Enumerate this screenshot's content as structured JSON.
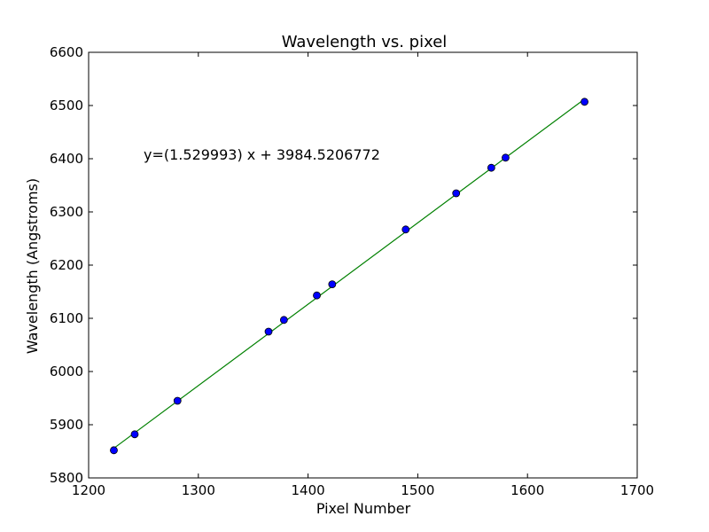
{
  "chart_data": {
    "type": "scatter",
    "title": "Wavelength vs. pixel",
    "xlabel": "Pixel Number",
    "ylabel": "Wavelength (Angstroms)",
    "xlim": [
      1200,
      1700
    ],
    "ylim": [
      5800,
      6600
    ],
    "xticks": [
      "1200",
      "1300",
      "1400",
      "1500",
      "1600",
      "1700"
    ],
    "yticks": [
      "5800",
      "5900",
      "6000",
      "6100",
      "6200",
      "6300",
      "6400",
      "6500",
      "6600"
    ],
    "annotation": "y=(1.529993) x + 3984.5206772",
    "grid": false,
    "points": [
      {
        "x": 1223,
        "y": 5852
      },
      {
        "x": 1242,
        "y": 5882
      },
      {
        "x": 1281,
        "y": 5945
      },
      {
        "x": 1364,
        "y": 6075
      },
      {
        "x": 1378,
        "y": 6097
      },
      {
        "x": 1408,
        "y": 6143
      },
      {
        "x": 1422,
        "y": 6164
      },
      {
        "x": 1489,
        "y": 6267
      },
      {
        "x": 1535,
        "y": 6335
      },
      {
        "x": 1567,
        "y": 6383
      },
      {
        "x": 1580,
        "y": 6402
      },
      {
        "x": 1652,
        "y": 6507
      }
    ],
    "fit_line": {
      "slope": 1.529993,
      "intercept": 3984.5206772,
      "x_range": [
        1223,
        1652
      ]
    },
    "colors": {
      "points": "#0000ff",
      "line": "#008000"
    }
  }
}
